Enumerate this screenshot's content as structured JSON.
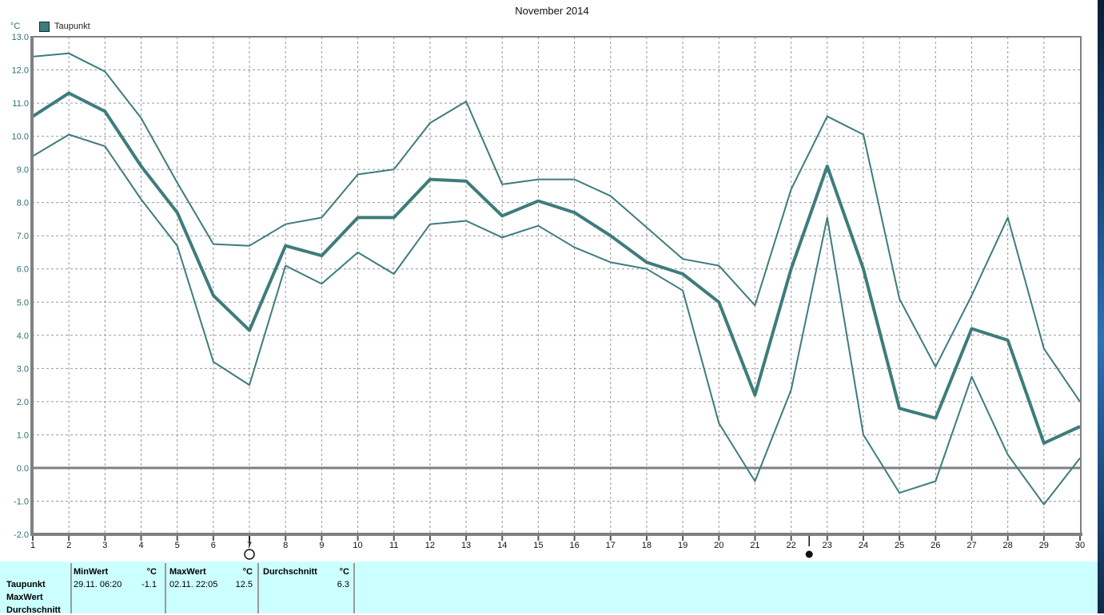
{
  "window": {
    "title": "November 2014"
  },
  "legend": {
    "label": "Taupunkt",
    "swatch_color": "#3e7c7c"
  },
  "axis": {
    "unit_label": "°C",
    "y_ticks": [
      "13.0",
      "12.0",
      "11.0",
      "10.0",
      "9.0",
      "8.0",
      "7.0",
      "6.0",
      "5.0",
      "4.0",
      "3.0",
      "2.0",
      "1.0",
      "0.0",
      "-1.0",
      "-2.0"
    ],
    "x_ticks": [
      "1",
      "2",
      "3",
      "4",
      "5",
      "6",
      "7",
      "8",
      "9",
      "10",
      "11",
      "12",
      "13",
      "14",
      "15",
      "16",
      "17",
      "18",
      "19",
      "20",
      "21",
      "22",
      "23",
      "24",
      "25",
      "26",
      "27",
      "28",
      "29",
      "30"
    ],
    "ylabel_color": "#2f6f6f",
    "xlabel_color": "#111111",
    "grid_color": "#999999",
    "axis_color": "#808080"
  },
  "chart_data": {
    "type": "line",
    "title": "November 2014",
    "xlabel": "",
    "ylabel": "°C",
    "x": [
      1,
      2,
      3,
      4,
      5,
      6,
      7,
      8,
      9,
      10,
      11,
      12,
      13,
      14,
      15,
      16,
      17,
      18,
      19,
      20,
      21,
      22,
      23,
      24,
      25,
      26,
      27,
      28,
      29,
      30
    ],
    "ylim": [
      -2.0,
      13.0
    ],
    "ytick_step": 1.0,
    "grid": "dashed",
    "zero_line": true,
    "legend_position": "top-left",
    "line_color": "#3e7c7c",
    "series": [
      {
        "name": "Taupunkt MaxWert",
        "style": "thin",
        "values": [
          12.4,
          12.5,
          11.95,
          10.55,
          8.6,
          6.75,
          6.7,
          7.35,
          7.55,
          8.85,
          9.0,
          10.4,
          11.05,
          8.55,
          8.7,
          8.7,
          8.2,
          7.25,
          6.3,
          6.1,
          4.9,
          8.4,
          10.6,
          10.05,
          5.1,
          3.05,
          5.2,
          7.55,
          3.6,
          2.0
        ]
      },
      {
        "name": "Taupunkt Durchschnitt",
        "style": "thick",
        "values": [
          10.6,
          11.3,
          10.75,
          9.1,
          7.7,
          5.2,
          4.15,
          6.7,
          6.4,
          7.55,
          7.55,
          8.7,
          8.65,
          7.6,
          8.05,
          7.7,
          7.0,
          6.2,
          5.85,
          5.0,
          2.2,
          6.0,
          9.1,
          6.0,
          1.8,
          1.5,
          4.2,
          3.85,
          0.75,
          1.25
        ]
      },
      {
        "name": "Taupunkt MinWert",
        "style": "thin",
        "values": [
          9.4,
          10.05,
          9.7,
          8.1,
          6.7,
          3.2,
          2.5,
          6.1,
          5.55,
          6.5,
          5.85,
          7.35,
          7.45,
          6.95,
          7.3,
          6.65,
          6.2,
          6.0,
          5.35,
          1.35,
          -0.4,
          2.35,
          7.55,
          1.0,
          -0.75,
          -0.4,
          2.75,
          0.4,
          -1.1,
          0.3
        ]
      }
    ],
    "markers": [
      {
        "icon": "full-moon",
        "day": 7
      },
      {
        "icon": "new-moon",
        "day": 22.5
      }
    ]
  },
  "info_panel": {
    "background": "#ccffff",
    "row_labels": [
      "Taupunkt",
      "MaxWert",
      "Durchschnitt"
    ],
    "columns": [
      {
        "header": "MinWert",
        "unit": "°C",
        "datetime": "29.11.  06:20",
        "value": "-1.1"
      },
      {
        "header": "MaxWert",
        "unit": "°C",
        "datetime": "02.11.  22:05",
        "value": "12.5"
      },
      {
        "header": "Durchschnitt",
        "unit": "°C",
        "datetime": "",
        "value": "6.3"
      }
    ]
  }
}
